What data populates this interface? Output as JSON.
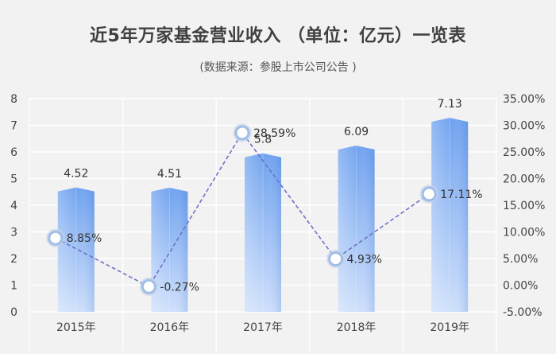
{
  "chart_data": {
    "type": "bar",
    "title": "近5年万家基金营业收入 （单位：亿元）一览表",
    "subtitle": "(数据来源：参股上市公司公告 )",
    "categories": [
      "2015年",
      "2016年",
      "2017年",
      "2018年",
      "2019年"
    ],
    "series": [
      {
        "type": "bar",
        "values": [
          4.52,
          4.51,
          5.8,
          6.09,
          7.13
        ],
        "labels": [
          "4.52",
          "4.51",
          "5.8",
          "6.09",
          "7.13"
        ],
        "axis": "left"
      },
      {
        "type": "line",
        "values": [
          8.85,
          -0.27,
          28.59,
          4.93,
          17.11
        ],
        "labels": [
          "8.85%",
          "-0.27%",
          "28.59%",
          "4.93%",
          "17.11%"
        ],
        "axis": "right"
      }
    ],
    "y_left": {
      "min": 0,
      "max": 8,
      "ticks": [
        "0",
        "1",
        "2",
        "3",
        "4",
        "5",
        "6",
        "7",
        "8"
      ]
    },
    "y_right": {
      "min": -5,
      "max": 35,
      "ticks": [
        "-5.00%",
        "0.00%",
        "5.00%",
        "10.00%",
        "15.00%",
        "20.00%",
        "25.00%",
        "30.00%",
        "35.00%"
      ]
    },
    "grid": true,
    "colors": {
      "bar_top": "#6fa2ef",
      "bar_bottom": "#cfe0fb",
      "line": "#6d72c8",
      "marker_fill": "#ffffff",
      "marker_stroke": "#9fbde8",
      "grid": "#ffffff"
    }
  }
}
